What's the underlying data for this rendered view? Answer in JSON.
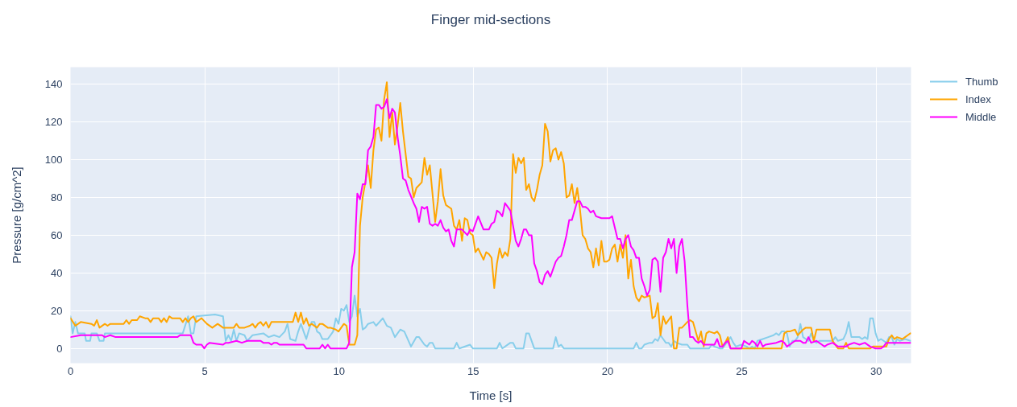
{
  "chart_data": {
    "type": "line",
    "title": "Finger mid-sections",
    "xlabel": "Time [s]",
    "ylabel": "Pressure [g/cm^2]",
    "xlim": [
      0,
      31.3
    ],
    "ylim": [
      -7.8,
      149
    ],
    "xticks": [
      0,
      5,
      10,
      15,
      20,
      25,
      30
    ],
    "yticks": [
      0,
      20,
      40,
      60,
      80,
      100,
      120,
      140
    ],
    "grid": true,
    "legend": "top right",
    "series": [
      {
        "name": "Thumb",
        "color": "#87ceeb",
        "x": [
          0,
          0.08,
          0.18,
          0.28,
          0.53,
          0.58,
          0.73,
          0.78,
          0.98,
          1.08,
          1.23,
          1.28,
          4.18,
          4.38,
          4.48,
          4.58,
          4.68,
          5.38,
          5.68,
          5.78,
          5.88,
          5.98,
          6.08,
          6.18,
          6.28,
          6.48,
          6.58,
          6.78,
          7.18,
          7.38,
          7.58,
          7.78,
          7.98,
          8.08,
          8.18,
          8.38,
          8.48,
          8.58,
          8.68,
          8.78,
          8.88,
          8.98,
          9.08,
          9.18,
          9.28,
          9.38,
          9.58,
          9.78,
          9.88,
          9.98,
          10.08,
          10.18,
          10.28,
          10.38,
          10.48,
          10.58,
          10.68,
          10.78,
          10.88,
          10.98,
          11.08,
          11.28,
          11.38,
          11.63,
          11.78,
          11.93,
          12.08,
          12.28,
          12.43,
          12.68,
          12.88,
          12.98,
          13.18,
          13.28,
          13.38,
          13.48,
          13.58,
          14.28,
          14.38,
          14.48,
          14.88,
          14.98,
          15.88,
          15.98,
          16.08,
          16.38,
          16.48,
          16.58,
          16.87,
          16.97,
          17.07,
          17.27,
          17.97,
          18.07,
          18.17,
          18.27,
          18.37,
          20.97,
          21.07,
          21.17,
          21.27,
          21.37,
          21.57,
          21.67,
          21.77,
          21.87,
          21.97,
          22.07,
          22.17,
          22.27,
          22.37,
          22.47,
          22.57,
          22.77,
          22.97,
          23.07,
          23.58,
          23.78,
          23.88,
          23.98,
          24.18,
          24.28,
          24.48,
          24.58,
          24.68,
          24.78,
          24.98,
          25.18,
          25.28,
          25.38,
          25.48,
          25.58,
          25.78,
          25.98,
          26.18,
          26.28,
          26.38,
          26.48,
          26.58,
          26.68,
          26.78,
          26.88,
          26.98,
          27.08,
          27.18,
          27.28,
          27.48,
          27.58,
          27.68,
          27.78,
          27.88,
          28.38,
          28.48,
          28.58,
          28.78,
          28.88,
          28.98,
          29.08,
          29.38,
          29.48,
          29.58,
          29.68,
          29.78,
          29.88,
          29.98,
          30.08,
          30.18,
          30.28,
          30.38,
          30.48,
          30.58,
          30.68,
          30.78,
          30.88,
          31.08,
          31.28
        ],
        "values": [
          17,
          8,
          14,
          8,
          8,
          4,
          4,
          8,
          8,
          4,
          4,
          8,
          8,
          17,
          8,
          8,
          17,
          18,
          17,
          4,
          7,
          4,
          10,
          4,
          8,
          7,
          4,
          7,
          8,
          6,
          7,
          6,
          9,
          13,
          5,
          4,
          9,
          13,
          9,
          5,
          10,
          14,
          14,
          9,
          8,
          5,
          5,
          9,
          16,
          13,
          21,
          20,
          23,
          14,
          17,
          28,
          17,
          21,
          10,
          11,
          13,
          14,
          12,
          16,
          12,
          11,
          6,
          10,
          9,
          1,
          6,
          6,
          2,
          1,
          3,
          3,
          0,
          0,
          3,
          0,
          2,
          0,
          0,
          3,
          0,
          3,
          3,
          0,
          0,
          8,
          8,
          0,
          0,
          6,
          1,
          2,
          0,
          0,
          3,
          0,
          0,
          2,
          3,
          3,
          5,
          4,
          7,
          5,
          3,
          3,
          1,
          4,
          3,
          2,
          2,
          0,
          0,
          0,
          2,
          1,
          0,
          0,
          4,
          6,
          3,
          1,
          2,
          1,
          0,
          1,
          0,
          4,
          5,
          6,
          7,
          8,
          7,
          9,
          9,
          8,
          1,
          4,
          4,
          6,
          13,
          6,
          4,
          8,
          4,
          3,
          4,
          4,
          6,
          4,
          5,
          8,
          14,
          6,
          6,
          5,
          6,
          5,
          16,
          16,
          8,
          4,
          5,
          4,
          3,
          6,
          6,
          2,
          5,
          4,
          5,
          4
        ]
      },
      {
        "name": "Index",
        "color": "#ffa500",
        "x": [
          0,
          0.18,
          0.38,
          0.78,
          0.88,
          0.98,
          1.08,
          1.28,
          1.38,
          1.48,
          1.98,
          2.08,
          2.18,
          2.28,
          2.48,
          2.58,
          2.78,
          2.88,
          2.98,
          3.08,
          3.28,
          3.38,
          3.48,
          3.58,
          3.68,
          3.78,
          3.98,
          4.08,
          4.18,
          4.28,
          4.38,
          4.48,
          4.58,
          4.68,
          4.78,
          4.88,
          5.08,
          5.28,
          5.48,
          5.68,
          6.08,
          6.18,
          6.28,
          6.48,
          6.68,
          6.78,
          6.88,
          6.98,
          7.08,
          7.18,
          7.28,
          7.38,
          7.48,
          8.28,
          8.38,
          8.48,
          8.58,
          8.68,
          8.78,
          8.88,
          8.98,
          9.18,
          9.28,
          9.38,
          9.58,
          9.68,
          9.88,
          9.98,
          10.18,
          10.28,
          10.38,
          10.58,
          10.68,
          10.78,
          10.88,
          10.98,
          11.08,
          11.18,
          11.28,
          11.38,
          11.48,
          11.58,
          11.68,
          11.78,
          11.88,
          11.98,
          12.08,
          12.18,
          12.28,
          12.38,
          12.58,
          12.68,
          12.78,
          12.88,
          13.08,
          13.18,
          13.28,
          13.38,
          13.58,
          13.68,
          13.78,
          13.88,
          13.98,
          14.18,
          14.28,
          14.38,
          14.48,
          14.58,
          14.68,
          14.78,
          14.88,
          14.98,
          15.08,
          15.18,
          15.28,
          15.38,
          15.48,
          15.58,
          15.68,
          15.78,
          15.88,
          15.98,
          16.08,
          16.18,
          16.28,
          16.38,
          16.48,
          16.58,
          16.68,
          16.78,
          16.88,
          16.97,
          17.07,
          17.17,
          17.27,
          17.37,
          17.47,
          17.57,
          17.67,
          17.77,
          17.87,
          17.97,
          18.07,
          18.17,
          18.27,
          18.37,
          18.47,
          18.57,
          18.67,
          18.77,
          18.87,
          18.97,
          19.07,
          19.17,
          19.27,
          19.37,
          19.47,
          19.57,
          19.67,
          19.77,
          19.87,
          19.97,
          20.07,
          20.17,
          20.27,
          20.37,
          20.47,
          20.57,
          20.67,
          20.77,
          20.87,
          20.97,
          21.07,
          21.17,
          21.27,
          21.37,
          21.57,
          21.67,
          21.77,
          21.87,
          21.97,
          22.07,
          22.17,
          22.37,
          22.47,
          22.57,
          22.67,
          22.77,
          22.97,
          23.07,
          23.18,
          23.28,
          23.38,
          23.48,
          23.58,
          23.68,
          23.78,
          23.98,
          24.08,
          24.18,
          24.28,
          24.38,
          24.48,
          24.58,
          26.48,
          26.58,
          26.68,
          26.78,
          26.98,
          27.08,
          27.28,
          27.38,
          27.58,
          27.68,
          27.78,
          28.28,
          28.38,
          28.58,
          28.78,
          28.88,
          28.98,
          29.78,
          29.88,
          30.38,
          30.48,
          30.58,
          30.68,
          30.78,
          30.98,
          31.08,
          31.18,
          31.28
        ],
        "values": [
          16,
          12,
          14,
          13,
          12,
          15,
          11,
          13,
          12,
          13,
          13,
          15,
          13,
          15,
          15,
          17,
          16,
          16,
          14,
          16,
          16,
          14,
          16,
          14,
          17,
          16,
          16,
          16,
          14,
          16,
          14,
          16,
          17,
          14,
          15,
          16,
          13,
          11,
          13,
          11,
          11,
          13,
          11,
          11,
          12,
          13,
          11,
          13,
          14,
          12,
          14,
          11,
          14,
          14,
          19,
          14,
          19,
          13,
          16,
          12,
          13,
          11,
          13,
          13,
          11,
          11,
          10,
          9,
          13,
          12,
          2,
          2,
          7,
          65,
          80,
          88,
          97,
          85,
          105,
          116,
          117,
          110,
          132,
          141,
          112,
          125,
          108,
          118,
          130,
          115,
          91,
          90,
          80,
          85,
          88,
          101,
          92,
          97,
          67,
          78,
          95,
          81,
          76,
          74,
          65,
          63,
          68,
          57,
          69,
          68,
          61,
          60,
          51,
          53,
          50,
          47,
          51,
          50,
          48,
          32,
          45,
          53,
          48,
          51,
          49,
          58,
          103,
          93,
          101,
          98,
          101,
          84,
          87,
          80,
          78,
          84,
          92,
          97,
          119,
          115,
          99,
          105,
          106,
          100,
          104,
          98,
          80,
          81,
          87,
          77,
          85,
          74,
          60,
          58,
          53,
          51,
          43,
          53,
          44,
          57,
          46,
          46,
          47,
          53,
          55,
          46,
          55,
          48,
          60,
          37,
          47,
          33,
          27,
          25,
          28,
          27,
          28,
          16,
          17,
          24,
          7,
          17,
          13,
          17,
          0,
          0,
          11,
          11,
          14,
          15,
          14,
          9,
          4,
          9,
          1,
          8,
          9,
          8,
          9,
          7,
          1,
          3,
          6,
          0,
          0,
          8,
          9,
          9,
          10,
          7,
          10,
          11,
          11,
          4,
          10,
          10,
          4,
          0,
          0,
          3,
          0,
          0,
          1,
          1,
          5,
          7,
          5,
          6,
          5,
          6,
          7,
          8
        ]
      },
      {
        "name": "Middle",
        "color": "#ff00ff",
        "x": [
          0,
          0.38,
          1.18,
          1.28,
          1.48,
          1.68,
          3.98,
          4.08,
          4.48,
          4.58,
          4.68,
          4.88,
          4.98,
          5.08,
          5.18,
          5.68,
          5.78,
          5.88,
          6.18,
          6.38,
          6.58,
          6.78,
          7.08,
          7.18,
          7.38,
          7.48,
          7.58,
          7.68,
          7.78,
          8.68,
          8.78,
          9.28,
          9.38,
          9.48,
          9.58,
          9.68,
          10.28,
          10.38,
          10.48,
          10.58,
          10.68,
          10.78,
          10.88,
          10.98,
          11.08,
          11.18,
          11.28,
          11.38,
          11.48,
          11.58,
          11.68,
          11.78,
          11.88,
          11.98,
          12.08,
          12.18,
          12.28,
          12.38,
          12.48,
          12.58,
          12.78,
          12.88,
          12.98,
          13.08,
          13.18,
          13.28,
          13.38,
          13.48,
          13.58,
          13.68,
          13.78,
          13.88,
          13.98,
          14.08,
          14.18,
          14.28,
          14.38,
          14.58,
          14.78,
          14.88,
          14.98,
          15.18,
          15.38,
          15.58,
          15.68,
          15.78,
          15.88,
          15.98,
          16.08,
          16.18,
          16.28,
          16.38,
          16.48,
          16.58,
          16.68,
          16.78,
          16.88,
          16.97,
          17.07,
          17.17,
          17.27,
          17.37,
          17.47,
          17.57,
          17.67,
          17.77,
          17.87,
          17.97,
          18.07,
          18.17,
          18.27,
          18.37,
          18.47,
          18.57,
          18.67,
          18.77,
          18.87,
          18.97,
          19.07,
          19.17,
          19.27,
          19.37,
          19.47,
          19.57,
          19.77,
          20.07,
          20.17,
          20.27,
          20.37,
          20.47,
          20.57,
          20.67,
          20.77,
          20.87,
          20.97,
          21.07,
          21.17,
          21.27,
          21.37,
          21.47,
          21.57,
          21.67,
          21.77,
          21.87,
          21.97,
          22.07,
          22.17,
          22.27,
          22.37,
          22.47,
          22.57,
          22.67,
          22.77,
          22.87,
          22.97,
          23.07,
          23.18,
          23.28,
          23.38,
          23.48,
          23.58,
          23.98,
          24.08,
          24.18,
          24.28,
          24.38,
          24.48,
          24.58,
          24.98,
          25.08,
          25.18,
          25.28,
          25.38,
          25.48,
          25.58,
          25.68,
          25.78,
          25.88,
          26.28,
          26.48,
          26.58,
          26.68,
          26.78,
          26.98,
          27.18,
          27.28,
          27.38,
          27.48,
          27.58,
          27.78,
          27.98,
          28.08,
          28.18,
          28.38,
          28.58,
          28.88,
          28.98,
          29.18,
          29.38,
          29.58,
          29.78,
          29.98,
          30.18,
          30.28,
          30.38,
          30.58,
          31.28
        ],
        "values": [
          6,
          7,
          7,
          6,
          7,
          6,
          6,
          7,
          7,
          3,
          2,
          2,
          0,
          2,
          3,
          2,
          3,
          3,
          4,
          3,
          4,
          4,
          4,
          3,
          3,
          2,
          3,
          3,
          2,
          2,
          0,
          0,
          2,
          0,
          2,
          0,
          0,
          3,
          43,
          51,
          82,
          79,
          87,
          87,
          105,
          107,
          112,
          129,
          129,
          127,
          128,
          132,
          122,
          127,
          125,
          112,
          102,
          90,
          89,
          84,
          77,
          74,
          67,
          75,
          74,
          75,
          66,
          65,
          66,
          65,
          68,
          64,
          62,
          63,
          57,
          54,
          63,
          63,
          60,
          63,
          62,
          70,
          63,
          63,
          66,
          67,
          73,
          72,
          70,
          77,
          75,
          73,
          65,
          57,
          54,
          58,
          63,
          63,
          60,
          60,
          45,
          41,
          35,
          34,
          39,
          41,
          38,
          42,
          46,
          48,
          49,
          54,
          60,
          68,
          68,
          73,
          78,
          78,
          75,
          75,
          74,
          72,
          73,
          70,
          69,
          69,
          70,
          64,
          58,
          58,
          53,
          58,
          60,
          54,
          52,
          48,
          48,
          37,
          33,
          28,
          31,
          47,
          48,
          46,
          30,
          48,
          51,
          58,
          53,
          58,
          40,
          54,
          58,
          46,
          23,
          6,
          6,
          4,
          3,
          4,
          2,
          2,
          5,
          1,
          1,
          3,
          4,
          0,
          0,
          4,
          3,
          2,
          4,
          3,
          1,
          4,
          1,
          2,
          3,
          4,
          3,
          1,
          2,
          4,
          4,
          3,
          3,
          6,
          3,
          4,
          2,
          1,
          2,
          3,
          1,
          1,
          2,
          3,
          2,
          3,
          1,
          0,
          0,
          1,
          3,
          3,
          3
        ]
      }
    ]
  }
}
